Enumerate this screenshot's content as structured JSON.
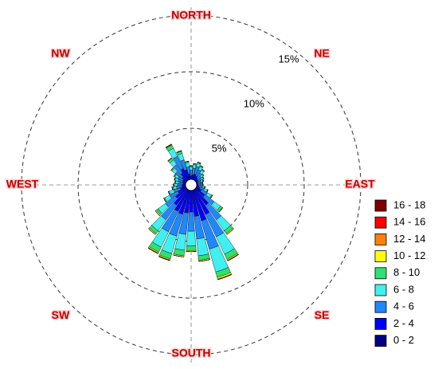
{
  "chart_data": {
    "type": "windrose",
    "direction_labels": [
      "NORTH",
      "NE",
      "EAST",
      "SE",
      "SOUTH",
      "SW",
      "WEST",
      "NW"
    ],
    "x": [
      0,
      10,
      20,
      30,
      40,
      50,
      60,
      70,
      80,
      90,
      100,
      110,
      120,
      130,
      140,
      150,
      160,
      170,
      180,
      190,
      200,
      210,
      220,
      230,
      240,
      250,
      260,
      270,
      280,
      290,
      300,
      310,
      320,
      330,
      340,
      350
    ],
    "rlim": [
      0,
      15
    ],
    "rticks": [
      {
        "value": 5,
        "label": "5%"
      },
      {
        "value": 10,
        "label": "10%"
      },
      {
        "value": 15,
        "label": "15%"
      }
    ],
    "series": [
      {
        "name": "0 - 2",
        "color": "#000080",
        "values": [
          0.2,
          0.2,
          0.2,
          0.2,
          0.2,
          0.2,
          0.2,
          0.2,
          0.2,
          0.2,
          0.2,
          0.2,
          0.2,
          0.3,
          0.4,
          0.5,
          0.5,
          0.5,
          0.4,
          0.4,
          0.4,
          0.4,
          0.4,
          0.3,
          0.3,
          0.2,
          0.2,
          0.2,
          0.2,
          0.2,
          0.2,
          0.2,
          0.3,
          0.3,
          0.3,
          0.2
        ]
      },
      {
        "name": "2 - 4",
        "color": "#0000ff",
        "values": [
          0.6,
          0.7,
          0.8,
          0.7,
          0.6,
          0.5,
          0.5,
          0.4,
          0.4,
          0.4,
          0.5,
          0.6,
          0.8,
          1.2,
          1.8,
          2.4,
          2.8,
          2.3,
          2.0,
          2.1,
          2.3,
          2.2,
          1.8,
          1.4,
          1.0,
          0.8,
          0.6,
          0.6,
          0.5,
          0.6,
          0.6,
          0.8,
          1.0,
          1.3,
          1.1,
          0.8
        ]
      },
      {
        "name": "4 - 6",
        "color": "#1e88ff",
        "values": [
          0.5,
          0.6,
          0.7,
          0.6,
          0.5,
          0.4,
          0.3,
          0.3,
          0.3,
          0.3,
          0.3,
          0.4,
          0.6,
          1.0,
          1.6,
          2.2,
          2.6,
          2.0,
          1.7,
          1.9,
          2.0,
          2.0,
          1.6,
          1.1,
          0.8,
          0.6,
          0.5,
          0.4,
          0.4,
          0.4,
          0.5,
          0.7,
          0.9,
          1.2,
          0.9,
          0.6
        ]
      },
      {
        "name": "6 - 8",
        "color": "#40f0f0",
        "values": [
          0.3,
          0.3,
          0.3,
          0.3,
          0.3,
          0.2,
          0.2,
          0.2,
          0.1,
          0.1,
          0.2,
          0.3,
          0.4,
          0.7,
          1.2,
          1.7,
          2.1,
          1.5,
          1.3,
          1.4,
          1.6,
          1.5,
          1.2,
          0.8,
          0.5,
          0.4,
          0.3,
          0.3,
          0.3,
          0.3,
          0.3,
          0.4,
          0.5,
          0.8,
          0.6,
          0.4
        ]
      },
      {
        "name": "8 - 10",
        "color": "#30e070",
        "values": [
          0.1,
          0.1,
          0.1,
          0.1,
          0.1,
          0.1,
          0.05,
          0.05,
          0.05,
          0.05,
          0.05,
          0.05,
          0.1,
          0.2,
          0.3,
          0.5,
          0.5,
          0.4,
          0.4,
          0.5,
          0.5,
          0.5,
          0.3,
          0.2,
          0.1,
          0.1,
          0.1,
          0.05,
          0.05,
          0.05,
          0.1,
          0.1,
          0.2,
          0.3,
          0.2,
          0.1
        ]
      },
      {
        "name": "10 - 12",
        "color": "#ffff00",
        "values": [
          0,
          0,
          0,
          0,
          0,
          0,
          0,
          0,
          0,
          0,
          0,
          0,
          0,
          0.05,
          0.1,
          0.1,
          0.15,
          0.1,
          0.1,
          0.1,
          0.1,
          0.1,
          0.1,
          0.1,
          0,
          0,
          0,
          0,
          0,
          0,
          0,
          0,
          0.05,
          0.05,
          0.05,
          0
        ]
      },
      {
        "name": "12 - 14",
        "color": "#ff8000",
        "values": [
          0,
          0,
          0,
          0,
          0,
          0,
          0,
          0,
          0,
          0,
          0,
          0,
          0,
          0,
          0,
          0.05,
          0.05,
          0,
          0,
          0,
          0.05,
          0.05,
          0,
          0,
          0,
          0,
          0,
          0,
          0,
          0,
          0,
          0,
          0,
          0.05,
          0,
          0
        ]
      },
      {
        "name": "14 - 16",
        "color": "#ff0000",
        "values": [
          0,
          0,
          0,
          0,
          0,
          0,
          0,
          0,
          0,
          0,
          0,
          0,
          0,
          0,
          0,
          0,
          0,
          0,
          0,
          0,
          0,
          0,
          0,
          0,
          0,
          0,
          0,
          0,
          0,
          0,
          0,
          0,
          0,
          0,
          0,
          0
        ]
      },
      {
        "name": "16 - 18",
        "color": "#800000",
        "values": [
          0,
          0,
          0,
          0,
          0,
          0,
          0,
          0,
          0,
          0,
          0,
          0,
          0,
          0,
          0,
          0,
          0,
          0,
          0,
          0,
          0,
          0,
          0,
          0,
          0,
          0,
          0,
          0,
          0,
          0,
          0,
          0,
          0,
          0,
          0,
          0
        ]
      }
    ]
  }
}
